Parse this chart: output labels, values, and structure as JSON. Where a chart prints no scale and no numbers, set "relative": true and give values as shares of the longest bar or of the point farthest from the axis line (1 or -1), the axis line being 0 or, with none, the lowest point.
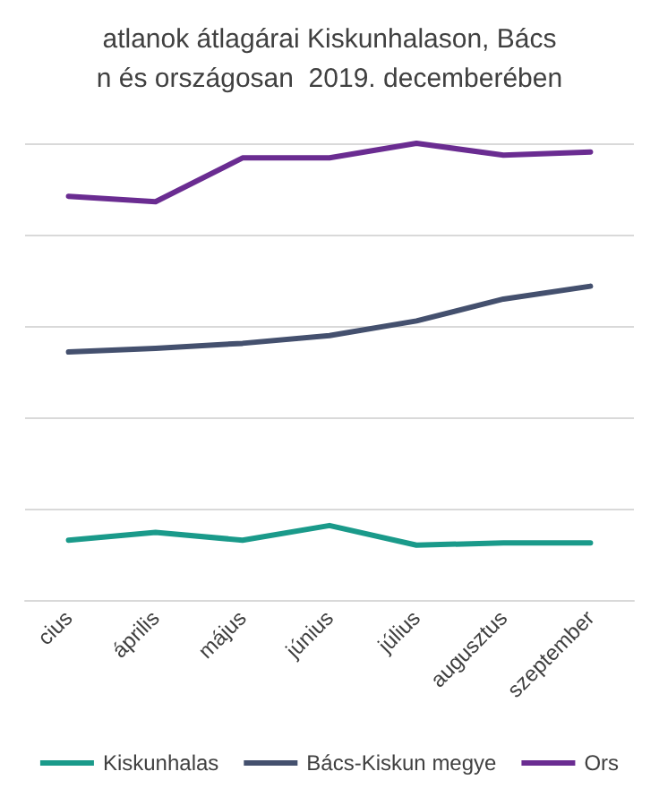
{
  "chart_data": {
    "type": "line",
    "title": "atlanok átlagárai Kiskunhalason, Bács\nn és országosan  2019. decemberében",
    "categories": [
      "cius",
      "április",
      "május",
      "június",
      "július",
      "augusztus",
      "szeptember"
    ],
    "relative": true,
    "grid": "y",
    "legend": "bottom",
    "marker": "none",
    "line_style": "solid",
    "series": [
      {
        "name": "Kiskunhalas",
        "color": "#1a9a8a",
        "values": [
          0.131,
          0.148,
          0.131,
          0.163,
          0.12,
          0.125,
          0.125
        ]
      },
      {
        "name": "Bács-Kiskun megye",
        "color": "#44506e",
        "values": [
          0.543,
          0.551,
          0.562,
          0.579,
          0.611,
          0.659,
          0.687
        ]
      },
      {
        "name": "Ors",
        "color": "#6a2c91",
        "values": [
          0.884,
          0.872,
          0.968,
          0.968,
          1,
          0.974,
          0.981
        ]
      }
    ]
  }
}
